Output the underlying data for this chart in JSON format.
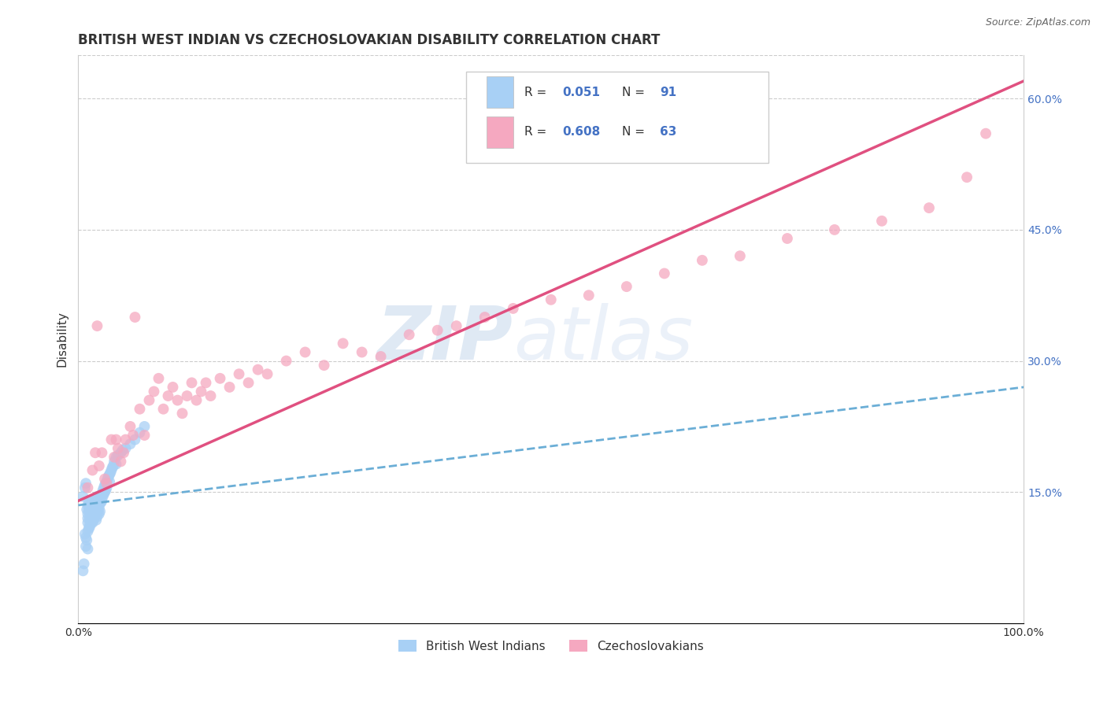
{
  "title": "BRITISH WEST INDIAN VS CZECHOSLOVAKIAN DISABILITY CORRELATION CHART",
  "source": "Source: ZipAtlas.com",
  "ylabel": "Disability",
  "legend_label_1": "British West Indians",
  "legend_label_2": "Czechoslovakians",
  "r_value_1": "0.051",
  "n_value_1": "91",
  "r_value_2": "0.608",
  "n_value_2": "63",
  "color_1": "#a8d0f5",
  "color_2": "#f5a8c0",
  "line_color_1": "#6baed6",
  "line_color_2": "#e05080",
  "watermark_zip": "ZIP",
  "watermark_atlas": "atlas",
  "background_color": "#ffffff",
  "grid_color": "#cccccc",
  "text_color_blue": "#4472c4",
  "text_color_dark": "#333333",
  "xmin": 0.0,
  "xmax": 1.0,
  "ymin": 0.0,
  "ymax": 0.65,
  "bwi_x": [
    0.005,
    0.007,
    0.008,
    0.009,
    0.01,
    0.01,
    0.01,
    0.01,
    0.011,
    0.011,
    0.012,
    0.012,
    0.012,
    0.012,
    0.013,
    0.013,
    0.013,
    0.014,
    0.014,
    0.014,
    0.015,
    0.015,
    0.015,
    0.015,
    0.015,
    0.016,
    0.016,
    0.016,
    0.017,
    0.017,
    0.018,
    0.018,
    0.018,
    0.019,
    0.019,
    0.02,
    0.02,
    0.02,
    0.02,
    0.021,
    0.021,
    0.022,
    0.022,
    0.022,
    0.023,
    0.023,
    0.023,
    0.024,
    0.024,
    0.025,
    0.025,
    0.026,
    0.026,
    0.027,
    0.027,
    0.028,
    0.028,
    0.029,
    0.029,
    0.03,
    0.03,
    0.031,
    0.032,
    0.033,
    0.033,
    0.034,
    0.035,
    0.036,
    0.037,
    0.038,
    0.04,
    0.04,
    0.042,
    0.045,
    0.047,
    0.05,
    0.055,
    0.06,
    0.065,
    0.07,
    0.01,
    0.011,
    0.012,
    0.013,
    0.007,
    0.008,
    0.009,
    0.008,
    0.01,
    0.006,
    0.005
  ],
  "bwi_y": [
    0.145,
    0.155,
    0.16,
    0.13,
    0.12,
    0.125,
    0.135,
    0.115,
    0.13,
    0.14,
    0.12,
    0.128,
    0.135,
    0.11,
    0.125,
    0.13,
    0.118,
    0.122,
    0.128,
    0.115,
    0.135,
    0.128,
    0.12,
    0.115,
    0.14,
    0.125,
    0.132,
    0.118,
    0.128,
    0.12,
    0.14,
    0.132,
    0.125,
    0.13,
    0.118,
    0.145,
    0.138,
    0.13,
    0.122,
    0.135,
    0.128,
    0.14,
    0.132,
    0.125,
    0.145,
    0.138,
    0.128,
    0.145,
    0.138,
    0.148,
    0.14,
    0.152,
    0.145,
    0.155,
    0.148,
    0.158,
    0.15,
    0.16,
    0.152,
    0.162,
    0.155,
    0.165,
    0.168,
    0.17,
    0.162,
    0.172,
    0.175,
    0.178,
    0.18,
    0.185,
    0.19,
    0.182,
    0.192,
    0.195,
    0.198,
    0.2,
    0.205,
    0.21,
    0.218,
    0.225,
    0.105,
    0.108,
    0.112,
    0.118,
    0.102,
    0.098,
    0.095,
    0.088,
    0.085,
    0.068,
    0.06
  ],
  "czech_x": [
    0.01,
    0.015,
    0.018,
    0.02,
    0.022,
    0.025,
    0.028,
    0.03,
    0.035,
    0.038,
    0.04,
    0.042,
    0.045,
    0.048,
    0.05,
    0.055,
    0.058,
    0.06,
    0.065,
    0.07,
    0.075,
    0.08,
    0.085,
    0.09,
    0.095,
    0.1,
    0.105,
    0.11,
    0.115,
    0.12,
    0.125,
    0.13,
    0.135,
    0.14,
    0.15,
    0.16,
    0.17,
    0.18,
    0.19,
    0.2,
    0.22,
    0.24,
    0.26,
    0.28,
    0.3,
    0.32,
    0.35,
    0.38,
    0.4,
    0.43,
    0.46,
    0.5,
    0.54,
    0.58,
    0.62,
    0.66,
    0.7,
    0.75,
    0.8,
    0.85,
    0.9,
    0.94,
    0.96
  ],
  "czech_y": [
    0.155,
    0.175,
    0.195,
    0.34,
    0.18,
    0.195,
    0.165,
    0.16,
    0.21,
    0.19,
    0.21,
    0.2,
    0.185,
    0.195,
    0.21,
    0.225,
    0.215,
    0.35,
    0.245,
    0.215,
    0.255,
    0.265,
    0.28,
    0.245,
    0.26,
    0.27,
    0.255,
    0.24,
    0.26,
    0.275,
    0.255,
    0.265,
    0.275,
    0.26,
    0.28,
    0.27,
    0.285,
    0.275,
    0.29,
    0.285,
    0.3,
    0.31,
    0.295,
    0.32,
    0.31,
    0.305,
    0.33,
    0.335,
    0.34,
    0.35,
    0.36,
    0.37,
    0.375,
    0.385,
    0.4,
    0.415,
    0.42,
    0.44,
    0.45,
    0.46,
    0.475,
    0.51,
    0.56
  ],
  "title_fontsize": 12,
  "axis_label_fontsize": 11,
  "tick_fontsize": 10,
  "legend_fontsize": 11,
  "source_fontsize": 9
}
